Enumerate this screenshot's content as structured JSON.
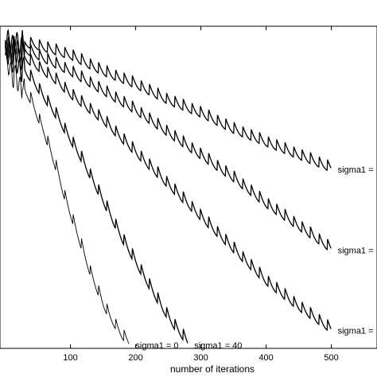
{
  "chart_data": {
    "type": "line",
    "title": "",
    "xlabel": "number of iterations",
    "ylabel": "",
    "xlim": [
      -8,
      570
    ],
    "ylim": [
      0,
      1
    ],
    "x_ticks": [
      100,
      200,
      300,
      400,
      500
    ],
    "grid": false,
    "legend": "none",
    "series": [
      {
        "color": "#000000",
        "annotation": "sigma1 = 0",
        "end_x": 190,
        "points": [
          [
            0,
            0.91
          ],
          [
            5,
            0.88
          ],
          [
            10,
            0.86
          ],
          [
            15,
            0.84
          ],
          [
            20,
            0.83
          ],
          [
            30,
            0.8
          ],
          [
            40,
            0.77
          ],
          [
            50,
            0.72
          ],
          [
            60,
            0.67
          ],
          [
            70,
            0.61
          ],
          [
            80,
            0.55
          ],
          [
            90,
            0.48
          ],
          [
            100,
            0.42
          ],
          [
            110,
            0.36
          ],
          [
            120,
            0.3
          ],
          [
            130,
            0.24
          ],
          [
            140,
            0.19
          ],
          [
            150,
            0.14
          ],
          [
            160,
            0.1
          ],
          [
            170,
            0.07
          ],
          [
            180,
            0.04
          ],
          [
            190,
            0.02
          ]
        ]
      },
      {
        "color": "#000000",
        "annotation": "sigma1 = 40",
        "end_x": 280,
        "points": [
          [
            0,
            0.92
          ],
          [
            10,
            0.9
          ],
          [
            20,
            0.88
          ],
          [
            30,
            0.86
          ],
          [
            40,
            0.84
          ],
          [
            50,
            0.81
          ],
          [
            60,
            0.78
          ],
          [
            80,
            0.72
          ],
          [
            100,
            0.65
          ],
          [
            120,
            0.58
          ],
          [
            140,
            0.5
          ],
          [
            160,
            0.42
          ],
          [
            180,
            0.34
          ],
          [
            200,
            0.27
          ],
          [
            220,
            0.2
          ],
          [
            240,
            0.13
          ],
          [
            260,
            0.07
          ],
          [
            280,
            0.02
          ]
        ]
      },
      {
        "color": "#000000",
        "annotation": "sigma1 =",
        "end_x": 500,
        "points": [
          [
            0,
            0.93
          ],
          [
            20,
            0.91
          ],
          [
            40,
            0.89
          ],
          [
            60,
            0.86
          ],
          [
            80,
            0.83
          ],
          [
            100,
            0.79
          ],
          [
            150,
            0.71
          ],
          [
            200,
            0.61
          ],
          [
            250,
            0.51
          ],
          [
            300,
            0.41
          ],
          [
            350,
            0.31
          ],
          [
            400,
            0.21
          ],
          [
            450,
            0.13
          ],
          [
            500,
            0.06
          ]
        ]
      },
      {
        "color": "#000000",
        "annotation": "sigma1 =",
        "end_x": 500,
        "points": [
          [
            0,
            0.94
          ],
          [
            20,
            0.93
          ],
          [
            40,
            0.92
          ],
          [
            60,
            0.9
          ],
          [
            100,
            0.86
          ],
          [
            150,
            0.8
          ],
          [
            200,
            0.74
          ],
          [
            250,
            0.67
          ],
          [
            300,
            0.6
          ],
          [
            350,
            0.53
          ],
          [
            400,
            0.45
          ],
          [
            450,
            0.38
          ],
          [
            500,
            0.31
          ]
        ]
      },
      {
        "color": "#000000",
        "annotation": "sigma1 =",
        "end_x": 500,
        "points": [
          [
            0,
            0.96
          ],
          [
            20,
            0.95
          ],
          [
            50,
            0.94
          ],
          [
            100,
            0.91
          ],
          [
            150,
            0.86
          ],
          [
            200,
            0.82
          ],
          [
            250,
            0.77
          ],
          [
            300,
            0.73
          ],
          [
            350,
            0.68
          ],
          [
            400,
            0.64
          ],
          [
            450,
            0.6
          ],
          [
            500,
            0.56
          ]
        ]
      }
    ]
  }
}
